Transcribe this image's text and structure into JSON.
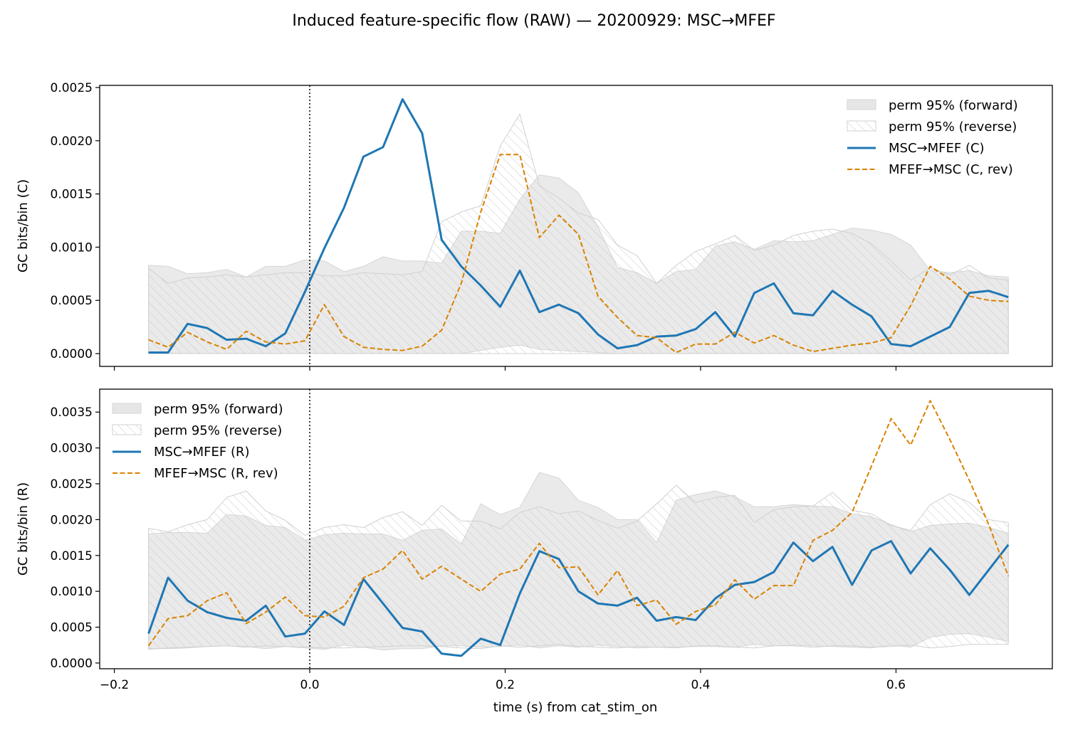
{
  "figure": {
    "title": "Induced feature-specific flow (RAW) — 20200929: MSC→MFEF",
    "xlabel": "time (s) from cat_stim_on"
  },
  "colors": {
    "forward": "#1f77b4",
    "reverse": "#d98200",
    "band_fill": "#e6e6e6",
    "hatch": "#c8c8c8"
  },
  "chart_data": [
    {
      "type": "line",
      "ylabel": "GC bits/bin (C)",
      "xlim": [
        -0.215,
        0.76
      ],
      "ylim": [
        -0.00012,
        0.00252
      ],
      "xticks": [
        -0.2,
        0.0,
        0.2,
        0.4,
        0.6
      ],
      "xticklabels": [],
      "yticks": [
        0.0,
        0.0005,
        0.001,
        0.0015,
        0.002,
        0.0025
      ],
      "yticklabels": [
        "0.0000",
        "0.0005",
        "0.0010",
        "0.0015",
        "0.0020",
        "0.0025"
      ],
      "vline_x": 0.0,
      "legend_position": "upper right",
      "legend": [
        "perm 95% (forward)",
        "perm 95% (reverse)",
        "MSC→MFEF (C)",
        "MFEF→MSC (C, rev)"
      ],
      "x": [
        -0.165,
        -0.145,
        -0.125,
        -0.105,
        -0.085,
        -0.065,
        -0.045,
        -0.025,
        -0.005,
        0.015,
        0.035,
        0.055,
        0.075,
        0.095,
        0.115,
        0.135,
        0.155,
        0.175,
        0.195,
        0.215,
        0.235,
        0.255,
        0.275,
        0.295,
        0.315,
        0.335,
        0.355,
        0.375,
        0.395,
        0.415,
        0.435,
        0.455,
        0.475,
        0.495,
        0.515,
        0.535,
        0.555,
        0.575,
        0.595,
        0.615,
        0.635,
        0.655,
        0.675,
        0.695,
        0.715
      ],
      "series": [
        {
          "name": "MSC→MFEF (C)",
          "style": "solid",
          "values": [
            1e-05,
            1e-05,
            0.00028,
            0.00024,
            0.00013,
            0.00014,
            7e-05,
            0.00019,
            0.00058,
            0.00099,
            0.00137,
            0.00185,
            0.00194,
            0.00239,
            0.00207,
            0.00107,
            0.00082,
            0.00064,
            0.00044,
            0.00078,
            0.00039,
            0.00046,
            0.00038,
            0.00018,
            5e-05,
            8e-05,
            0.00016,
            0.00017,
            0.00023,
            0.00039,
            0.00016,
            0.00057,
            0.00066,
            0.00038,
            0.00036,
            0.00059,
            0.00046,
            0.00035,
            9e-05,
            7e-05,
            0.00016,
            0.00025,
            0.00057,
            0.00059,
            0.00053
          ]
        },
        {
          "name": "MFEF→MSC (C, rev)",
          "style": "dashed",
          "values": [
            0.00013,
            6e-05,
            0.0002,
            0.00011,
            4e-05,
            0.00021,
            0.00011,
            9e-05,
            0.00012,
            0.00046,
            0.00016,
            6e-05,
            4e-05,
            3e-05,
            7e-05,
            0.00022,
            0.00066,
            0.00133,
            0.00187,
            0.00187,
            0.00109,
            0.0013,
            0.00112,
            0.00054,
            0.00034,
            0.00017,
            0.00015,
            1e-05,
            9e-05,
            9e-05,
            0.0002,
            0.0001,
            0.00017,
            8e-05,
            2e-05,
            5e-05,
            8e-05,
            0.0001,
            0.00015,
            0.00045,
            0.00082,
            0.0007,
            0.00054,
            0.0005,
            0.00049
          ]
        }
      ],
      "bands": [
        {
          "name": "perm 95% (forward)",
          "style": "filled",
          "lower": [
            0,
            0,
            0,
            0,
            0,
            0,
            0,
            0,
            0,
            0,
            0,
            0,
            0,
            0,
            0,
            0,
            0,
            3e-05,
            6e-05,
            8e-05,
            4e-05,
            3e-05,
            2e-05,
            1e-05,
            0,
            0,
            0,
            0,
            0,
            0,
            0,
            0,
            0,
            0,
            0,
            0,
            0,
            0,
            0,
            0,
            0,
            0,
            0,
            0,
            0
          ],
          "upper": [
            0.00083,
            0.00082,
            0.00075,
            0.00076,
            0.00079,
            0.00072,
            0.00082,
            0.00082,
            0.00088,
            0.00087,
            0.00077,
            0.00082,
            0.00091,
            0.00087,
            0.00087,
            0.00085,
            0.00115,
            0.00115,
            0.00113,
            0.00145,
            0.00168,
            0.00165,
            0.00151,
            0.00119,
            0.00081,
            0.00076,
            0.00066,
            0.00077,
            0.00079,
            0.00101,
            0.00105,
            0.00098,
            0.00106,
            0.00105,
            0.00106,
            0.00112,
            0.00118,
            0.00116,
            0.00112,
            0.00102,
            0.00078,
            0.00076,
            0.00078,
            0.00073,
            0.00072
          ]
        },
        {
          "name": "perm 95% (reverse)",
          "style": "hatched",
          "lower": [
            0,
            0,
            0,
            0,
            0,
            0,
            0,
            0,
            0,
            0,
            0,
            0,
            0,
            0,
            0,
            0,
            0,
            0,
            0,
            0,
            0,
            0,
            0,
            0,
            0,
            0,
            0,
            0,
            0,
            0,
            0,
            0,
            0,
            0,
            0,
            0,
            0,
            0,
            0,
            0,
            0,
            0,
            0,
            0,
            0
          ],
          "upper": [
            0.0008,
            0.00066,
            0.00071,
            0.00072,
            0.00074,
            0.00072,
            0.00074,
            0.00076,
            0.00076,
            0.00073,
            0.00073,
            0.00076,
            0.00075,
            0.00074,
            0.00077,
            0.00124,
            0.00133,
            0.00139,
            0.00195,
            0.00225,
            0.00158,
            0.00146,
            0.00132,
            0.00126,
            0.00102,
            0.00092,
            0.00066,
            0.00083,
            0.00096,
            0.00103,
            0.00111,
            0.00097,
            0.00102,
            0.00111,
            0.00115,
            0.00117,
            0.00113,
            0.00103,
            0.00087,
            0.00069,
            0.00081,
            0.00074,
            0.00083,
            0.00071,
            0.00069
          ]
        }
      ]
    },
    {
      "type": "line",
      "ylabel": "GC bits/bin (R)",
      "xlim": [
        -0.215,
        0.76
      ],
      "ylim": [
        -8e-05,
        0.00382
      ],
      "xticks": [
        -0.2,
        0.0,
        0.2,
        0.4,
        0.6
      ],
      "xticklabels": [
        "−0.2",
        "0.0",
        "0.2",
        "0.4",
        "0.6"
      ],
      "yticks": [
        0.0,
        0.0005,
        0.001,
        0.0015,
        0.002,
        0.0025,
        0.003,
        0.0035
      ],
      "yticklabels": [
        "0.0000",
        "0.0005",
        "0.0010",
        "0.0015",
        "0.0020",
        "0.0025",
        "0.0030",
        "0.0035"
      ],
      "vline_x": 0.0,
      "legend_position": "upper left",
      "legend": [
        "perm 95% (forward)",
        "perm 95% (reverse)",
        "MSC→MFEF (R)",
        "MFEF→MSC (R, rev)"
      ],
      "x": [
        -0.165,
        -0.145,
        -0.125,
        -0.105,
        -0.085,
        -0.065,
        -0.045,
        -0.025,
        -0.005,
        0.015,
        0.035,
        0.055,
        0.075,
        0.095,
        0.115,
        0.135,
        0.155,
        0.175,
        0.195,
        0.215,
        0.235,
        0.255,
        0.275,
        0.295,
        0.315,
        0.335,
        0.355,
        0.375,
        0.395,
        0.415,
        0.435,
        0.455,
        0.475,
        0.495,
        0.515,
        0.535,
        0.555,
        0.575,
        0.595,
        0.615,
        0.635,
        0.655,
        0.675,
        0.695,
        0.715
      ],
      "series": [
        {
          "name": "MSC→MFEF (R)",
          "style": "solid",
          "values": [
            0.00041,
            0.00119,
            0.00087,
            0.00071,
            0.00063,
            0.00059,
            0.0008,
            0.00037,
            0.00041,
            0.00072,
            0.00053,
            0.00117,
            0.00083,
            0.00049,
            0.00044,
            0.00013,
            0.0001,
            0.00034,
            0.00025,
            0.00097,
            0.00156,
            0.00145,
            0.001,
            0.00083,
            0.0008,
            0.00091,
            0.00059,
            0.00064,
            0.0006,
            0.0009,
            0.00109,
            0.00113,
            0.00127,
            0.00168,
            0.00142,
            0.00162,
            0.00109,
            0.00157,
            0.0017,
            0.00125,
            0.0016,
            0.0013,
            0.00095,
            0.0013,
            0.00165
          ]
        },
        {
          "name": "MFEF→MSC (R, rev)",
          "style": "dashed",
          "values": [
            0.00024,
            0.00062,
            0.00066,
            0.00087,
            0.00098,
            0.00055,
            0.00071,
            0.00092,
            0.00066,
            0.00064,
            0.00079,
            0.00119,
            0.00131,
            0.00157,
            0.00117,
            0.00135,
            0.00117,
            0.001,
            0.00124,
            0.00131,
            0.00167,
            0.00133,
            0.00134,
            0.00095,
            0.00129,
            0.0008,
            0.00088,
            0.00054,
            0.00072,
            0.00081,
            0.00116,
            0.00089,
            0.00108,
            0.00108,
            0.00171,
            0.00185,
            0.0021,
            0.00275,
            0.00341,
            0.00304,
            0.00366,
            0.00312,
            0.00255,
            0.00193,
            0.00121
          ]
        }
      ],
      "bands": [
        {
          "name": "perm 95% (forward)",
          "style": "filled",
          "lower": [
            0.0002,
            0.0002,
            0.00021,
            0.00023,
            0.00024,
            0.00023,
            0.0002,
            0.00023,
            0.00021,
            0.00019,
            0.00025,
            0.00022,
            0.00018,
            0.0002,
            0.0002,
            0.00024,
            0.00024,
            0.00022,
            0.00023,
            0.00025,
            0.00021,
            0.00024,
            0.00022,
            0.00025,
            0.00023,
            0.00021,
            0.00022,
            0.00021,
            0.00024,
            0.00024,
            0.00022,
            0.00026,
            0.00024,
            0.00025,
            0.00024,
            0.00023,
            0.00022,
            0.00021,
            0.00025,
            0.00022,
            0.00036,
            0.0004,
            0.00041,
            0.00036,
            0.0003
          ],
          "upper": [
            0.0018,
            0.00182,
            0.00182,
            0.00181,
            0.00207,
            0.00205,
            0.00192,
            0.00189,
            0.00171,
            0.00179,
            0.00181,
            0.0018,
            0.0018,
            0.00171,
            0.00185,
            0.00187,
            0.00166,
            0.00222,
            0.00207,
            0.00217,
            0.00266,
            0.00258,
            0.00227,
            0.00217,
            0.002,
            0.002,
            0.00168,
            0.00227,
            0.00235,
            0.0024,
            0.00232,
            0.00218,
            0.00218,
            0.00221,
            0.00219,
            0.00218,
            0.00208,
            0.00204,
            0.00193,
            0.00183,
            0.00192,
            0.00194,
            0.00195,
            0.00189,
            0.00181
          ]
        },
        {
          "name": "perm 95% (reverse)",
          "style": "hatched",
          "lower": [
            0.00019,
            0.00021,
            0.00022,
            0.00023,
            0.00024,
            0.00022,
            0.00024,
            0.00023,
            0.00022,
            0.00021,
            0.00021,
            0.00022,
            0.00023,
            0.00024,
            0.00024,
            0.00023,
            0.00021,
            0.0002,
            0.00024,
            0.00022,
            0.00024,
            0.00026,
            0.00023,
            0.00022,
            0.00021,
            0.00023,
            0.00022,
            0.00022,
            0.00023,
            0.00023,
            0.00022,
            0.00021,
            0.00024,
            0.00024,
            0.00022,
            0.00024,
            0.00024,
            0.00022,
            0.00023,
            0.00025,
            0.00021,
            0.00023,
            0.00026,
            0.00026,
            0.00026
          ],
          "upper": [
            0.00188,
            0.00183,
            0.00193,
            0.002,
            0.00231,
            0.0024,
            0.00212,
            0.00199,
            0.00178,
            0.00189,
            0.00193,
            0.00189,
            0.00203,
            0.00211,
            0.00192,
            0.0022,
            0.00198,
            0.00198,
            0.00187,
            0.0021,
            0.00218,
            0.00208,
            0.00212,
            0.00199,
            0.00188,
            0.00198,
            0.00222,
            0.00248,
            0.00224,
            0.00231,
            0.00234,
            0.00196,
            0.00214,
            0.00218,
            0.00219,
            0.00238,
            0.00213,
            0.00208,
            0.00192,
            0.00185,
            0.00221,
            0.00236,
            0.00224,
            0.002,
            0.00196
          ]
        }
      ]
    }
  ]
}
